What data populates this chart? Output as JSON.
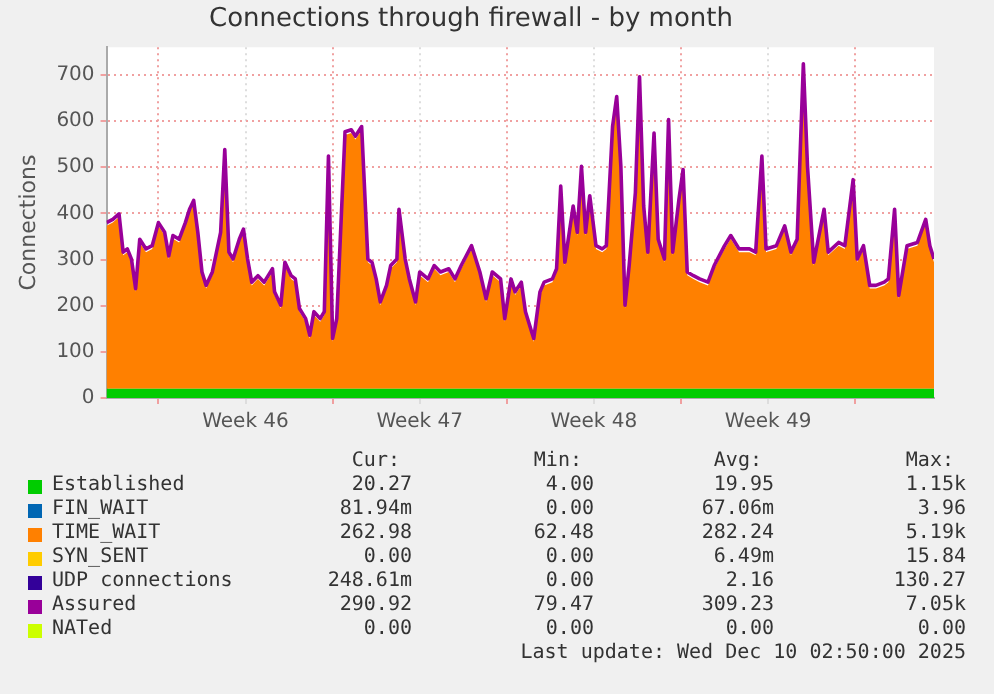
{
  "chart_data": {
    "type": "area",
    "title": "Connections through firewall - by month",
    "ylabel": "Connections",
    "stacked": true,
    "grid": true,
    "legend": "bottom",
    "xlim": [
      "2025-11-07T22:00",
      "2025-12-11T04:00"
    ],
    "xticks": [
      {
        "value": "2025-11-10T00:00",
        "label": null
      },
      {
        "value": "2025-11-13T12:00",
        "label": "Week 46"
      },
      {
        "value": "2025-11-17T00:00",
        "label": null
      },
      {
        "value": "2025-11-20T12:00",
        "label": "Week 47"
      },
      {
        "value": "2025-11-24T00:00",
        "label": null
      },
      {
        "value": "2025-11-27T12:00",
        "label": "Week 48"
      },
      {
        "value": "2025-12-01T00:00",
        "label": null
      },
      {
        "value": "2025-12-04T12:00",
        "label": "Week 49"
      },
      {
        "value": "2025-12-08T00:00",
        "label": null
      }
    ],
    "ylim": [
      0,
      760
    ],
    "yticks": [
      0,
      100,
      200,
      300,
      400,
      500,
      600,
      700
    ],
    "x": [
      "2025-11-07T22:00",
      "2025-11-08T04:00",
      "2025-11-08T10:00",
      "2025-11-08T14:00",
      "2025-11-08T18:00",
      "2025-11-08T22:00",
      "2025-11-09T02:00",
      "2025-11-09T06:00",
      "2025-11-09T12:00",
      "2025-11-09T18:00",
      "2025-11-10T00:00",
      "2025-11-10T06:00",
      "2025-11-10T10:00",
      "2025-11-10T14:00",
      "2025-11-10T20:00",
      "2025-11-11T02:00",
      "2025-11-11T06:00",
      "2025-11-11T10:00",
      "2025-11-11T14:00",
      "2025-11-11T18:00",
      "2025-11-11T22:00",
      "2025-11-12T04:00",
      "2025-11-12T12:00",
      "2025-11-12T16:00",
      "2025-11-12T20:00",
      "2025-11-13T00:00",
      "2025-11-13T06:00",
      "2025-11-13T10:00",
      "2025-11-13T14:00",
      "2025-11-13T18:00",
      "2025-11-14T00:00",
      "2025-11-14T06:00",
      "2025-11-14T14:00",
      "2025-11-14T16:00",
      "2025-11-14T22:00",
      "2025-11-15T02:00",
      "2025-11-15T08:00",
      "2025-11-15T12:00",
      "2025-11-15T16:00",
      "2025-11-15T22:00",
      "2025-11-16T02:00",
      "2025-11-16T06:00",
      "2025-11-16T12:00",
      "2025-11-16T16:00",
      "2025-11-16T20:00",
      "2025-11-17T00:00",
      "2025-11-17T04:00",
      "2025-11-17T12:00",
      "2025-11-17T18:00",
      "2025-11-17T22:00",
      "2025-11-18T04:00",
      "2025-11-18T10:00",
      "2025-11-18T14:00",
      "2025-11-18T18:00",
      "2025-11-18T22:00",
      "2025-11-19T04:00",
      "2025-11-19T08:00",
      "2025-11-19T14:00",
      "2025-11-19T16:00",
      "2025-11-19T22:00",
      "2025-11-20T02:00",
      "2025-11-20T08:00",
      "2025-11-20T12:00",
      "2025-11-20T20:00",
      "2025-11-21T02:00",
      "2025-11-21T08:00",
      "2025-11-21T16:00",
      "2025-11-21T22:00",
      "2025-11-22T04:00",
      "2025-11-22T14:00",
      "2025-11-22T22:00",
      "2025-11-23T04:00",
      "2025-11-23T10:00",
      "2025-11-23T18:00",
      "2025-11-23T22:00",
      "2025-11-24T04:00",
      "2025-11-24T08:00",
      "2025-11-24T14:00",
      "2025-11-24T18:00",
      "2025-11-25T00:00",
      "2025-11-25T02:00",
      "2025-11-25T08:00",
      "2025-11-25T12:00",
      "2025-11-25T20:00",
      "2025-11-26T00:00",
      "2025-11-26T04:00",
      "2025-11-26T08:00",
      "2025-11-26T16:00",
      "2025-11-26T20:00",
      "2025-11-27T00:00",
      "2025-11-27T04:00",
      "2025-11-27T08:00",
      "2025-11-27T14:00",
      "2025-11-27T20:00",
      "2025-11-28T00:00",
      "2025-11-28T06:00",
      "2025-11-28T10:00",
      "2025-11-28T14:00",
      "2025-11-28T18:00",
      "2025-11-28T22:00",
      "2025-11-29T04:00",
      "2025-11-29T08:00",
      "2025-11-29T12:00",
      "2025-11-29T16:00",
      "2025-11-29T22:00",
      "2025-11-30T02:00",
      "2025-11-30T08:00",
      "2025-11-30T12:00",
      "2025-11-30T16:00",
      "2025-11-30T22:00",
      "2025-12-01T02:00",
      "2025-12-01T06:00",
      "2025-12-01T12:00",
      "2025-12-01T18:00",
      "2025-12-02T02:00",
      "2025-12-02T08:00",
      "2025-12-02T18:00",
      "2025-12-03T00:00",
      "2025-12-03T08:00",
      "2025-12-03T18:00",
      "2025-12-04T00:00",
      "2025-12-04T06:00",
      "2025-12-04T10:00",
      "2025-12-04T20:00",
      "2025-12-05T04:00",
      "2025-12-05T10:00",
      "2025-12-05T16:00",
      "2025-12-05T22:00",
      "2025-12-06T02:00",
      "2025-12-06T08:00",
      "2025-12-06T18:00",
      "2025-12-06T22:00",
      "2025-12-07T08:00",
      "2025-12-07T14:00",
      "2025-12-07T22:00",
      "2025-12-08T02:00",
      "2025-12-08T08:00",
      "2025-12-08T14:00",
      "2025-12-08T20:00",
      "2025-12-09T04:00",
      "2025-12-09T08:00",
      "2025-12-09T14:00",
      "2025-12-09T18:00",
      "2025-12-10T02:00",
      "2025-12-10T12:00",
      "2025-12-10T20:00",
      "2025-12-11T00:00",
      "2025-12-11T04:00"
    ],
    "series": [
      {
        "name": "Established",
        "color": "#00cc00",
        "values": [
          20,
          20,
          20,
          20,
          20,
          20,
          20,
          20,
          20,
          20,
          20,
          20,
          20,
          20,
          20,
          20,
          20,
          20,
          20,
          20,
          20,
          20,
          20,
          20,
          20,
          20,
          20,
          20,
          20,
          20,
          20,
          20,
          20,
          20,
          20,
          20,
          20,
          20,
          20,
          20,
          20,
          20,
          20,
          20,
          20,
          20,
          20,
          20,
          20,
          20,
          20,
          20,
          20,
          20,
          20,
          20,
          20,
          20,
          20,
          20,
          20,
          20,
          20,
          20,
          20,
          20,
          20,
          20,
          20,
          20,
          20,
          20,
          20,
          20,
          20,
          20,
          20,
          20,
          20,
          20,
          20,
          20,
          20,
          20,
          20,
          20,
          20,
          20,
          20,
          20,
          20,
          20,
          20,
          20,
          20,
          20,
          20,
          20,
          20,
          20,
          20,
          20,
          20,
          20,
          20,
          20,
          20,
          20,
          20,
          20,
          20,
          20,
          20,
          20,
          20,
          20,
          20,
          20,
          20,
          20,
          20,
          20,
          20,
          20,
          20,
          20,
          20,
          20,
          20,
          20,
          20,
          20,
          20,
          20,
          20,
          20,
          20,
          20,
          20,
          20,
          20,
          20,
          20,
          20,
          20,
          20,
          20,
          20
        ]
      },
      {
        "name": "FIN_WAIT",
        "color": "#0066b3",
        "type": "line",
        "values": [
          null,
          null,
          null,
          null,
          null,
          null,
          null,
          null,
          null,
          null,
          null,
          null,
          null,
          null,
          null,
          null,
          null,
          null,
          null,
          null,
          null,
          null,
          null,
          null,
          null,
          null,
          null,
          null,
          null,
          null,
          null,
          null,
          null,
          null,
          null,
          null,
          null,
          null,
          null,
          null,
          null,
          null,
          null,
          null,
          null,
          null,
          null,
          null,
          null,
          null,
          null,
          null,
          null,
          null,
          null,
          null,
          null,
          null,
          null,
          null,
          null,
          null,
          null,
          null,
          null,
          null,
          null,
          null,
          null,
          null,
          null,
          null,
          null,
          null,
          null,
          null,
          null,
          null,
          null,
          null,
          null,
          null,
          null,
          null,
          null,
          null,
          null,
          null,
          null,
          null,
          null,
          null,
          null,
          null,
          null,
          null,
          null,
          null,
          null,
          null,
          null,
          null,
          null,
          null,
          null,
          null,
          null,
          null,
          null,
          null,
          null,
          null,
          null,
          null,
          null,
          null,
          null,
          null,
          null,
          null,
          null,
          null,
          null,
          null,
          null,
          null,
          null,
          null,
          null,
          null,
          null,
          null,
          null,
          null,
          null,
          null,
          null,
          null,
          null,
          null,
          null,
          null,
          null,
          null,
          null,
          null,
          null,
          null
        ]
      },
      {
        "name": "TIME_WAIT",
        "color": "#ff8000",
        "values": [
          353,
          360,
          372,
          289,
          296,
          274,
          210,
          317,
          296,
          303,
          353,
          332,
          281,
          325,
          317,
          353,
          382,
          401,
          332,
          246,
          217,
          246,
          332,
          511,
          289,
          274,
          317,
          339,
          274,
          224,
          238,
          224,
          253,
          203,
          174,
          267,
          238,
          231,
          167,
          145,
          109,
          160,
          145,
          160,
          497,
          102,
          145,
          550,
          554,
          540,
          561,
          274,
          267,
          231,
          181,
          217,
          260,
          274,
          382,
          274,
          231,
          181,
          246,
          231,
          260,
          246,
          253,
          231,
          260,
          303,
          246,
          188,
          246,
          231,
          145,
          231,
          203,
          224,
          160,
          116,
          102,
          203,
          224,
          231,
          253,
          432,
          267,
          389,
          332,
          475,
          332,
          411,
          303,
          296,
          303,
          561,
          626,
          475,
          174,
          260,
          418,
          669,
          389,
          289,
          547,
          317,
          274,
          576,
          289,
          403,
          468,
          246,
          238,
          231,
          224,
          260,
          303,
          325,
          296,
          296,
          289,
          497,
          296,
          303,
          346,
          289,
          317,
          697,
          475,
          267,
          382,
          289,
          310,
          303,
          446,
          274,
          303,
          217,
          217,
          224,
          231,
          382,
          195,
          303,
          310,
          360,
          303,
          274
        ]
      },
      {
        "name": "SYN_SENT",
        "color": "#ffcc00",
        "type": "line",
        "values": [
          null,
          null,
          null,
          null,
          null,
          null,
          null,
          null,
          null,
          null,
          null,
          null,
          null,
          null,
          null,
          null,
          null,
          null,
          null,
          null,
          null,
          null,
          null,
          null,
          null,
          null,
          null,
          null,
          null,
          null,
          null,
          null,
          null,
          null,
          null,
          null,
          null,
          null,
          null,
          null,
          null,
          null,
          null,
          null,
          null,
          null,
          null,
          null,
          null,
          null,
          null,
          null,
          null,
          null,
          null,
          null,
          null,
          null,
          null,
          null,
          null,
          null,
          null,
          null,
          null,
          null,
          null,
          null,
          null,
          null,
          null,
          null,
          null,
          null,
          null,
          null,
          null,
          null,
          null,
          null,
          null,
          null,
          null,
          null,
          null,
          null,
          null,
          null,
          null,
          null,
          null,
          null,
          null,
          null,
          null,
          null,
          null,
          null,
          null,
          null,
          null,
          null,
          null,
          null,
          null,
          null,
          null,
          null,
          null,
          null,
          null,
          null,
          null,
          null,
          null,
          null,
          null,
          null,
          null,
          null,
          null,
          null,
          null,
          null,
          null,
          null,
          null,
          null,
          null,
          null,
          null,
          null,
          null,
          null,
          null,
          null,
          null,
          null,
          null,
          null,
          null,
          null,
          null,
          null,
          null,
          null,
          null,
          null
        ]
      },
      {
        "name": "UDP connections",
        "color": "#330099",
        "type": "line",
        "values": [
          null,
          null,
          null,
          null,
          null,
          null,
          null,
          null,
          null,
          null,
          null,
          null,
          null,
          null,
          null,
          null,
          null,
          null,
          null,
          null,
          null,
          null,
          null,
          null,
          null,
          null,
          null,
          null,
          null,
          null,
          null,
          null,
          null,
          null,
          null,
          null,
          null,
          null,
          null,
          null,
          null,
          null,
          null,
          null,
          null,
          null,
          null,
          null,
          null,
          null,
          null,
          null,
          null,
          null,
          null,
          null,
          null,
          null,
          null,
          null,
          null,
          null,
          null,
          null,
          null,
          null,
          null,
          null,
          null,
          null,
          null,
          null,
          null,
          null,
          null,
          null,
          null,
          null,
          null,
          null,
          null,
          null,
          null,
          null,
          null,
          null,
          null,
          null,
          null,
          null,
          null,
          null,
          null,
          null,
          null,
          null,
          null,
          null,
          null,
          null,
          null,
          null,
          null,
          null,
          null,
          null,
          null,
          null,
          null,
          null,
          null,
          null,
          null,
          null,
          null,
          null,
          null,
          null,
          null,
          null,
          null,
          null,
          null,
          null,
          null,
          null,
          null,
          null,
          null,
          null,
          null,
          null,
          null,
          null,
          null,
          null,
          null,
          null,
          null,
          null,
          null,
          null,
          null,
          null,
          null,
          null,
          null,
          null
        ]
      },
      {
        "name": "Assured",
        "color": "#990099",
        "type": "line",
        "values": [
          380,
          387,
          399,
          316,
          323,
          301,
          237,
          344,
          323,
          330,
          380,
          359,
          308,
          352,
          344,
          380,
          409,
          428,
          359,
          273,
          244,
          273,
          359,
          538,
          316,
          301,
          344,
          366,
          301,
          251,
          265,
          251,
          280,
          230,
          201,
          294,
          265,
          258,
          194,
          172,
          136,
          187,
          172,
          187,
          524,
          129,
          172,
          577,
          581,
          567,
          588,
          301,
          294,
          258,
          208,
          244,
          287,
          301,
          409,
          301,
          258,
          208,
          273,
          258,
          287,
          273,
          280,
          258,
          287,
          330,
          273,
          215,
          273,
          258,
          172,
          258,
          230,
          251,
          187,
          143,
          129,
          230,
          251,
          258,
          280,
          459,
          294,
          416,
          359,
          502,
          359,
          438,
          330,
          323,
          330,
          588,
          653,
          502,
          201,
          287,
          445,
          696,
          416,
          316,
          574,
          344,
          301,
          603,
          316,
          430,
          495,
          273,
          265,
          258,
          251,
          287,
          330,
          352,
          323,
          323,
          316,
          524,
          323,
          330,
          373,
          316,
          344,
          724,
          502,
          294,
          409,
          316,
          337,
          330,
          473,
          301,
          330,
          244,
          244,
          251,
          258,
          409,
          222,
          330,
          337,
          387,
          330,
          301
        ]
      },
      {
        "name": "NATed",
        "color": "#ccff00",
        "type": "line",
        "values": [
          null,
          null,
          null,
          null,
          null,
          null,
          null,
          null,
          null,
          null,
          null,
          null,
          null,
          null,
          null,
          null,
          null,
          null,
          null,
          null,
          null,
          null,
          null,
          null,
          null,
          null,
          null,
          null,
          null,
          null,
          null,
          null,
          null,
          null,
          null,
          null,
          null,
          null,
          null,
          null,
          null,
          null,
          null,
          null,
          null,
          null,
          null,
          null,
          null,
          null,
          null,
          null,
          null,
          null,
          null,
          null,
          null,
          null,
          null,
          null,
          null,
          null,
          null,
          null,
          null,
          null,
          null,
          null,
          null,
          null,
          null,
          null,
          null,
          null,
          null,
          null,
          null,
          null,
          null,
          null,
          null,
          null,
          null,
          null,
          null,
          null,
          null,
          null,
          null,
          null,
          null,
          null,
          null,
          null,
          null,
          null,
          null,
          null,
          null,
          null,
          null,
          null,
          null,
          null,
          null,
          null,
          null,
          null,
          null,
          null,
          null,
          null,
          null,
          null,
          null,
          null,
          null,
          null,
          null,
          null,
          null,
          null,
          null,
          null,
          null,
          null,
          null,
          null,
          null,
          null,
          null,
          null,
          null,
          null,
          null,
          null,
          null,
          null,
          null,
          null,
          null,
          null,
          null,
          null,
          null,
          null,
          null,
          null
        ]
      }
    ],
    "annotations": [
      "Cur:",
      "Min:",
      "Avg:",
      "Max:",
      "20.27",
      "4.00",
      "19.95",
      "1.15k",
      "81.94m",
      "0.00",
      "67.06m",
      "3.96",
      "262.98",
      "62.48",
      "282.24",
      "5.19k",
      "0.00",
      "0.00",
      "6.49m",
      "15.84",
      "248.61m",
      "0.00",
      "2.16",
      "130.27",
      "290.92",
      "79.47",
      "309.23",
      "7.05k",
      "0.00",
      "0.00",
      "0.00",
      "0.00",
      "Last update: Wed Dec 10 02:50:00 2025"
    ]
  }
}
